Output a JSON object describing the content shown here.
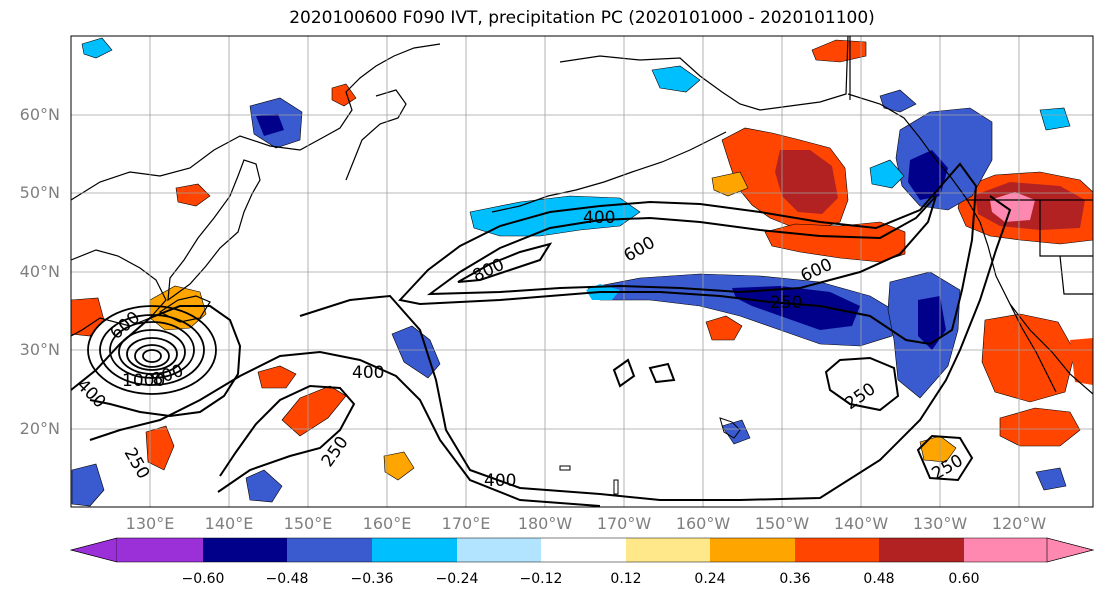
{
  "title": "2020100600 F090 IVT, precipitation PC (2020101000 - 2020101100)",
  "lat_labels": [
    "60°N",
    "50°N",
    "40°N",
    "30°N",
    "20°N"
  ],
  "lon_labels": [
    "130°E",
    "140°E",
    "150°E",
    "160°E",
    "170°E",
    "180°W",
    "170°W",
    "160°W",
    "150°W",
    "140°W",
    "130°W",
    "120°W"
  ],
  "colorbar": {
    "colors": [
      "#9b30d9",
      "#00008b",
      "#3a5bcf",
      "#00bfff",
      "#b2e4ff",
      "#ffffff",
      "#ffe88a",
      "#ffa500",
      "#ff4500",
      "#b22222",
      "#ff88b0"
    ],
    "ticks": [
      "−0.60",
      "−0.48",
      "−0.36",
      "−0.24",
      "−0.12",
      "0.12",
      "0.24",
      "0.36",
      "0.48",
      "0.60"
    ]
  },
  "contour_labels": [
    {
      "text": "400"
    },
    {
      "text": "800"
    },
    {
      "text": "600"
    },
    {
      "text": "600"
    },
    {
      "text": "250"
    },
    {
      "text": "250"
    },
    {
      "text": "250"
    },
    {
      "text": "400"
    },
    {
      "text": "250"
    },
    {
      "text": "250"
    },
    {
      "text": "400"
    },
    {
      "text": "600"
    },
    {
      "text": "1000"
    },
    {
      "text": "800"
    },
    {
      "text": "400"
    }
  ]
}
